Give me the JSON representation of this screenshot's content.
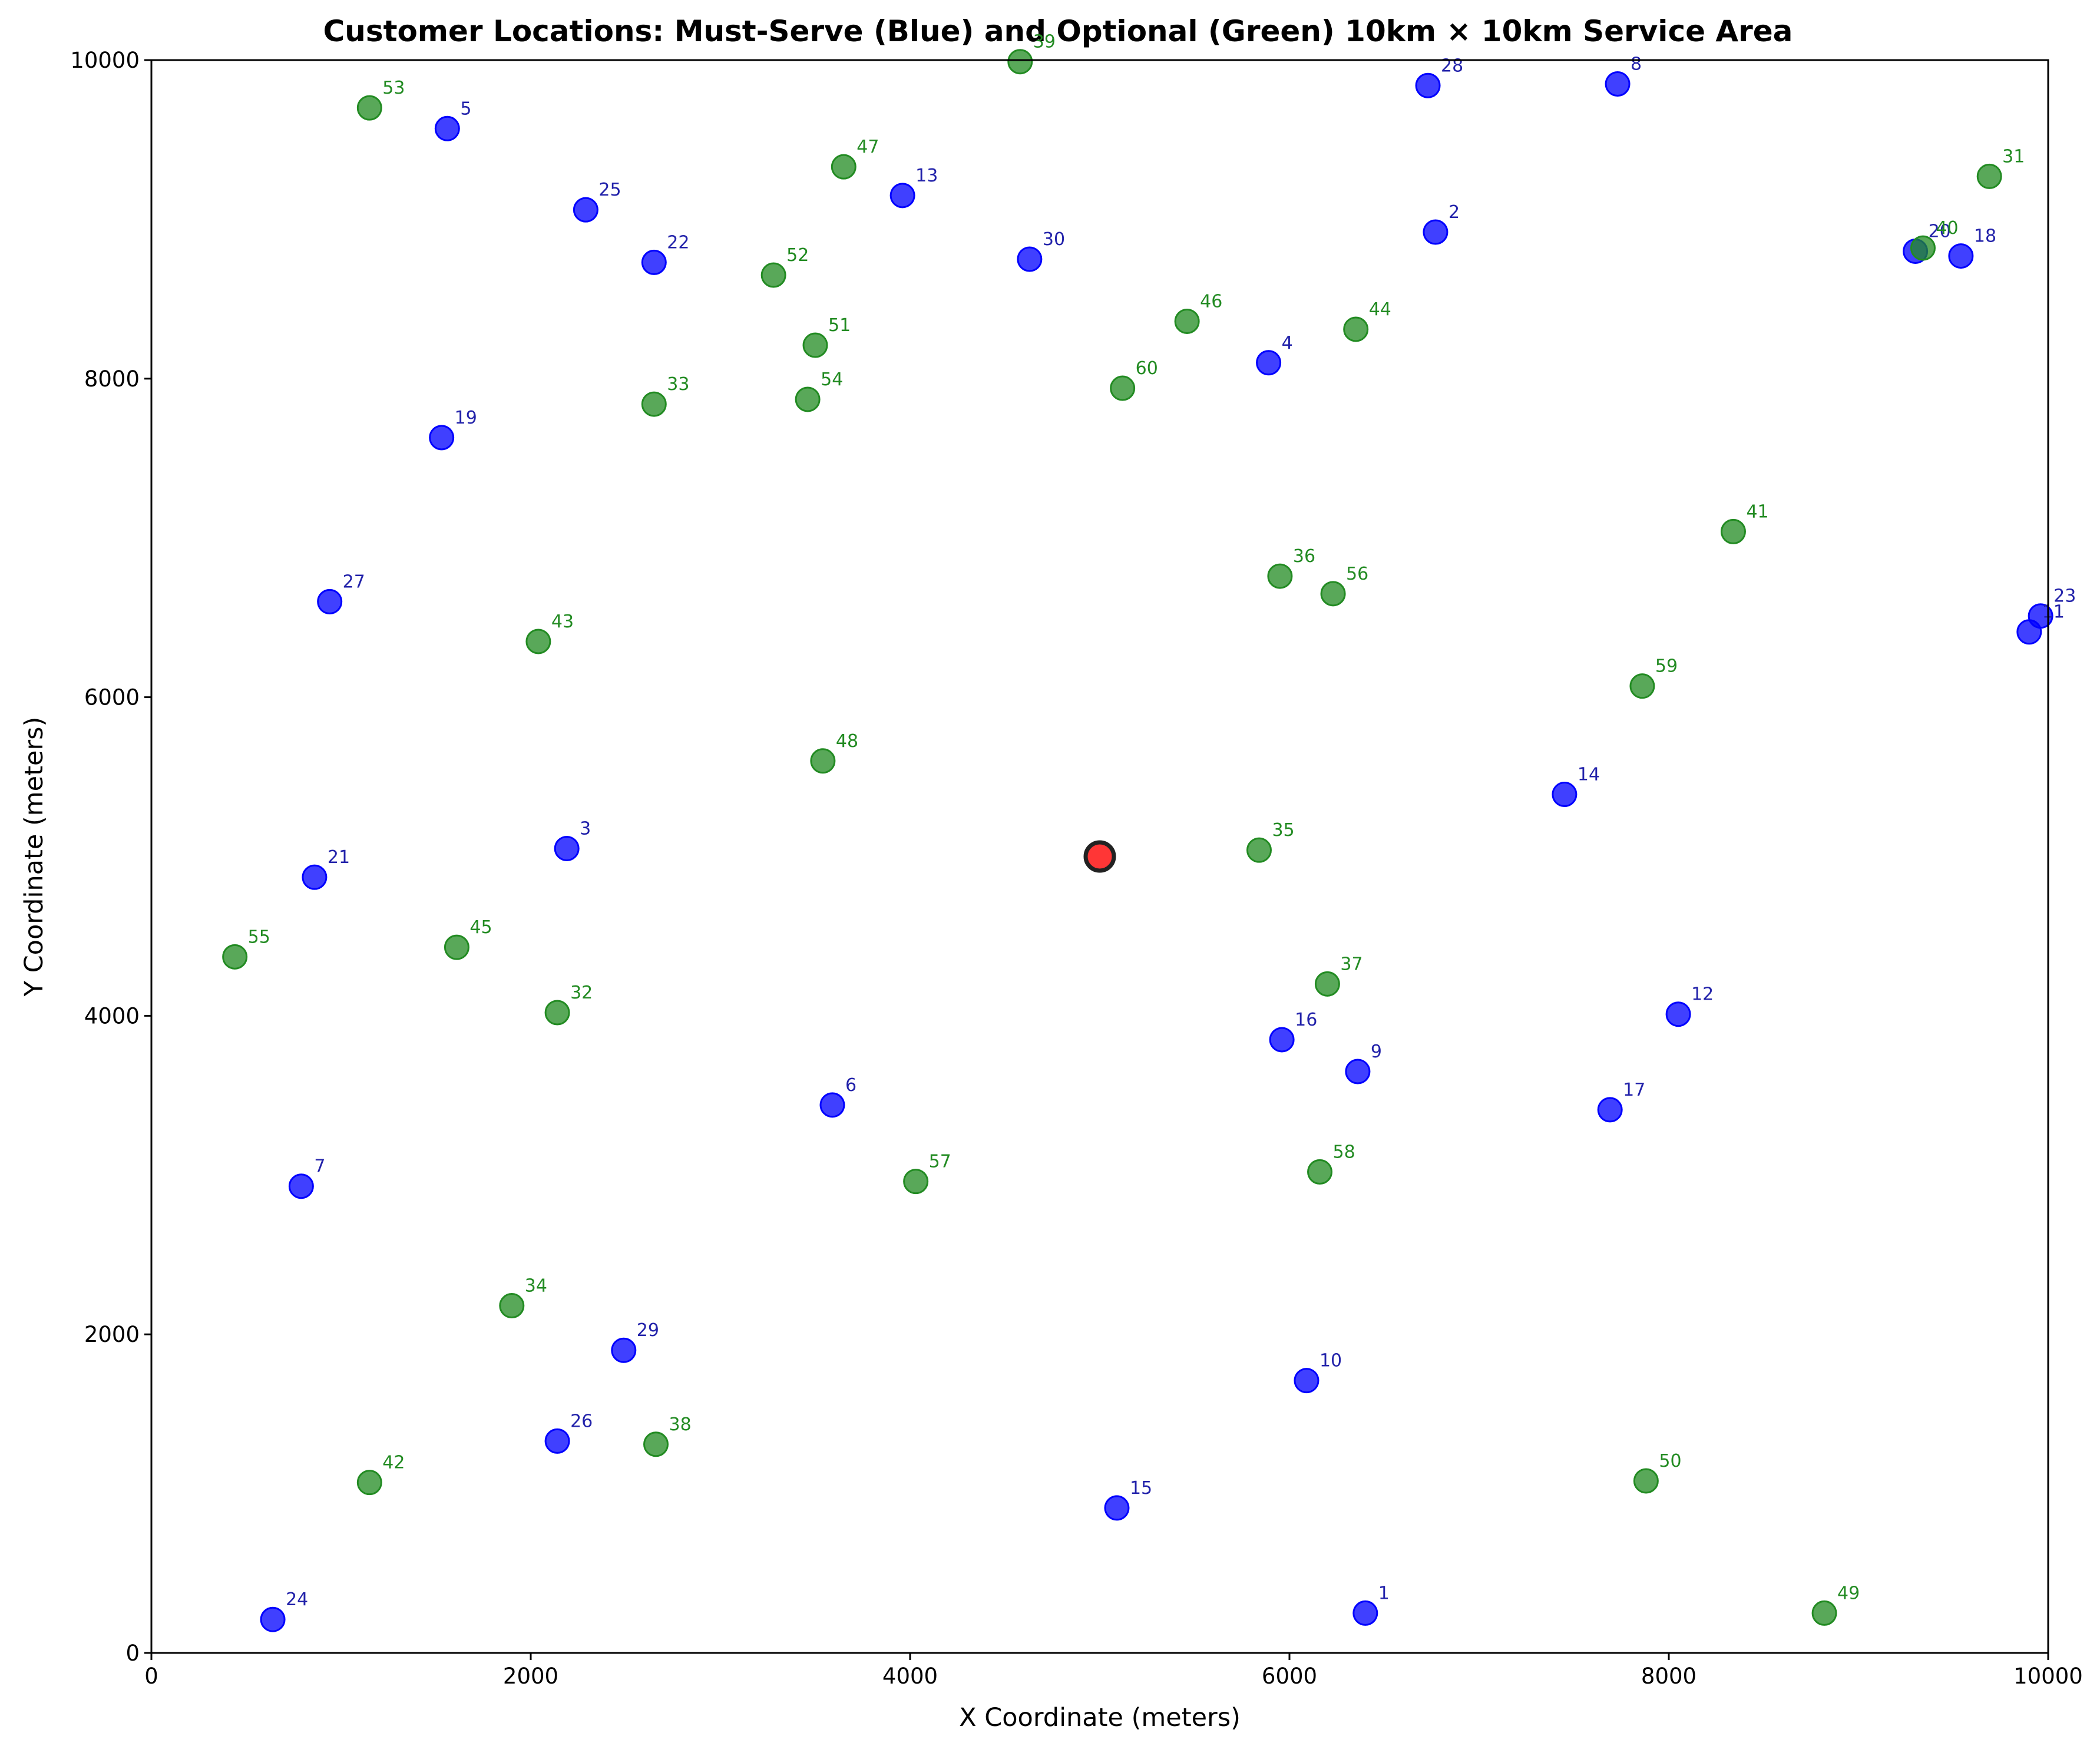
{
  "chart_data": {
    "type": "scatter",
    "title": "Customer Locations: Must-Serve (Blue) and Optional (Green) 10km × 10km Service Area",
    "xlabel": "X Coordinate (meters)",
    "ylabel": "Y Coordinate (meters)",
    "xlim": [
      0,
      10000
    ],
    "ylim": [
      0,
      10000
    ],
    "xticks": [
      "0",
      "2000",
      "4000",
      "6000",
      "8000",
      "10000"
    ],
    "yticks": [
      "0",
      "2000",
      "4000",
      "6000",
      "8000",
      "10000"
    ],
    "grid": false,
    "colors": {
      "must_serve_point": "#0000ff",
      "must_serve_label": "#2222aa",
      "optional_point": "#228b22",
      "optional_label": "#228b22",
      "depot": "#ff2020"
    },
    "depot": {
      "x": 5000,
      "y": 5000
    },
    "series": [
      {
        "points": [
          {
            "id": "1",
            "x": 6400,
            "y": 250
          },
          {
            "id": "2",
            "x": 6770,
            "y": 8920
          },
          {
            "id": "3",
            "x": 2190,
            "y": 5050
          },
          {
            "id": "4",
            "x": 5890,
            "y": 8100
          },
          {
            "id": "5",
            "x": 1560,
            "y": 9570
          },
          {
            "id": "6",
            "x": 3590,
            "y": 3440
          },
          {
            "id": "7",
            "x": 790,
            "y": 2930
          },
          {
            "id": "8",
            "x": 7730,
            "y": 9850
          },
          {
            "id": "9",
            "x": 6360,
            "y": 3650
          },
          {
            "id": "10",
            "x": 6090,
            "y": 1710
          },
          {
            "id": "11",
            "x": 9900,
            "y": 6410
          },
          {
            "id": "12",
            "x": 8050,
            "y": 4010
          },
          {
            "id": "13",
            "x": 3960,
            "y": 9150
          },
          {
            "id": "14",
            "x": 7450,
            "y": 5390
          },
          {
            "id": "15",
            "x": 5090,
            "y": 910
          },
          {
            "id": "16",
            "x": 5960,
            "y": 3850
          },
          {
            "id": "17",
            "x": 7690,
            "y": 3410
          },
          {
            "id": "18",
            "x": 9540,
            "y": 8770
          },
          {
            "id": "19",
            "x": 1530,
            "y": 7630
          },
          {
            "id": "20",
            "x": 9300,
            "y": 8800
          },
          {
            "id": "21",
            "x": 860,
            "y": 4870
          },
          {
            "id": "22",
            "x": 2650,
            "y": 8730
          },
          {
            "id": "23",
            "x": 9960,
            "y": 6510
          },
          {
            "id": "24",
            "x": 640,
            "y": 210
          },
          {
            "id": "25",
            "x": 2290,
            "y": 9060
          },
          {
            "id": "26",
            "x": 2140,
            "y": 1330
          },
          {
            "id": "27",
            "x": 940,
            "y": 6600
          },
          {
            "id": "28",
            "x": 6730,
            "y": 9840
          },
          {
            "id": "29",
            "x": 2490,
            "y": 1900
          },
          {
            "id": "30",
            "x": 4630,
            "y": 8750
          }
        ]
      },
      {
        "points": [
          {
            "id": "31",
            "x": 9690,
            "y": 9270
          },
          {
            "id": "32",
            "x": 2140,
            "y": 4020
          },
          {
            "id": "33",
            "x": 2650,
            "y": 7840
          },
          {
            "id": "34",
            "x": 1900,
            "y": 2180
          },
          {
            "id": "35",
            "x": 5840,
            "y": 5040
          },
          {
            "id": "36",
            "x": 5950,
            "y": 6760
          },
          {
            "id": "37",
            "x": 6200,
            "y": 4200
          },
          {
            "id": "38",
            "x": 2660,
            "y": 1310
          },
          {
            "id": "39",
            "x": 4580,
            "y": 9990
          },
          {
            "id": "40",
            "x": 9340,
            "y": 8820
          },
          {
            "id": "41",
            "x": 8340,
            "y": 7040
          },
          {
            "id": "42",
            "x": 1150,
            "y": 1070
          },
          {
            "id": "43",
            "x": 2040,
            "y": 6350
          },
          {
            "id": "44",
            "x": 6350,
            "y": 8310
          },
          {
            "id": "45",
            "x": 1610,
            "y": 4430
          },
          {
            "id": "46",
            "x": 5460,
            "y": 8360
          },
          {
            "id": "47",
            "x": 3650,
            "y": 9330
          },
          {
            "id": "48",
            "x": 3540,
            "y": 5600
          },
          {
            "id": "49",
            "x": 8820,
            "y": 250
          },
          {
            "id": "50",
            "x": 7880,
            "y": 1080
          },
          {
            "id": "51",
            "x": 3500,
            "y": 8210
          },
          {
            "id": "52",
            "x": 3280,
            "y": 8650
          },
          {
            "id": "53",
            "x": 1150,
            "y": 9700
          },
          {
            "id": "54",
            "x": 3460,
            "y": 7870
          },
          {
            "id": "55",
            "x": 440,
            "y": 4370
          },
          {
            "id": "56",
            "x": 6230,
            "y": 6650
          },
          {
            "id": "57",
            "x": 4030,
            "y": 2960
          },
          {
            "id": "58",
            "x": 6160,
            "y": 3020
          },
          {
            "id": "59",
            "x": 7860,
            "y": 6070
          },
          {
            "id": "60",
            "x": 5120,
            "y": 7940
          }
        ]
      }
    ]
  }
}
